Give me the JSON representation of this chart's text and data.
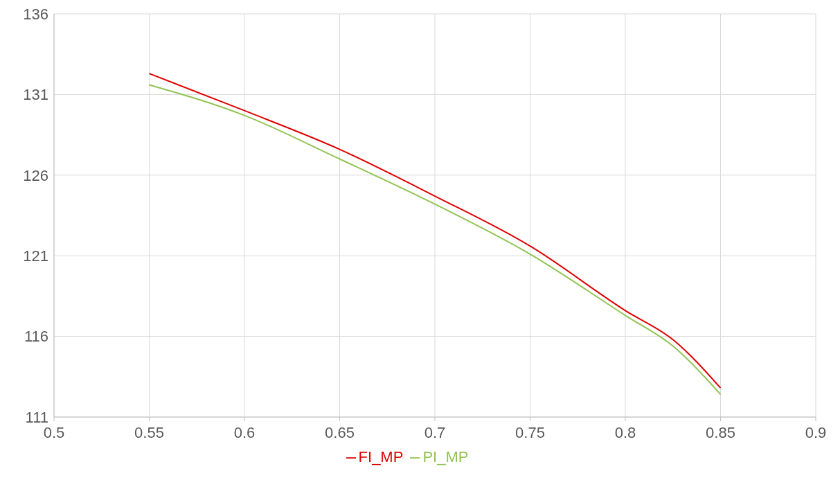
{
  "chart_data": {
    "type": "line",
    "x": [
      0.55,
      0.6,
      0.65,
      0.7,
      0.75,
      0.8,
      0.825,
      0.85
    ],
    "series": [
      {
        "name": "PI_MP",
        "color": "#92c353",
        "values": [
          131.6,
          129.7,
          127.0,
          124.2,
          121.1,
          117.3,
          115.4,
          112.4
        ]
      },
      {
        "name": "FI_MP",
        "color": "#e00000",
        "values": [
          132.3,
          130.0,
          127.6,
          124.7,
          121.6,
          117.6,
          115.8,
          112.8
        ]
      }
    ],
    "xlim": [
      0.5,
      0.9
    ],
    "xticks": [
      0.5,
      0.55,
      0.6,
      0.65,
      0.7,
      0.75,
      0.8,
      0.85,
      0.9
    ],
    "ylim": [
      111,
      136
    ],
    "yticks": [
      111,
      116,
      121,
      126,
      131,
      136
    ],
    "grid": true,
    "legend": "bottom",
    "marker": "none",
    "line_style": "solid"
  }
}
